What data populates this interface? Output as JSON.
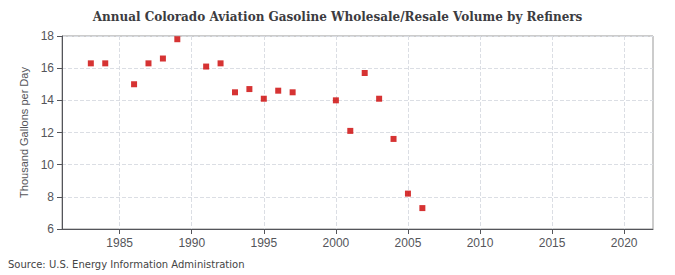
{
  "chart_data": {
    "type": "scatter",
    "title": "Annual Colorado Aviation Gasoline Wholesale/Resale Volume by Refiners",
    "ylabel": "Thousand Gallons per Day",
    "source": "Source: U.S. Energy Information Administration",
    "color": "#cc0000",
    "marker": "square",
    "grid": true,
    "xlim": [
      1981,
      2022
    ],
    "ylim": [
      6,
      18
    ],
    "xticks": [
      1985,
      1990,
      1995,
      2000,
      2005,
      2010,
      2015,
      2020
    ],
    "yticks": [
      6,
      8,
      10,
      12,
      14,
      16,
      18
    ],
    "x": [
      1983,
      1984,
      1986,
      1987,
      1988,
      1989,
      1991,
      1992,
      1993,
      1994,
      1995,
      1996,
      1997,
      2000,
      2001,
      2002,
      2003,
      2004,
      2005,
      2006
    ],
    "values": [
      16.3,
      16.3,
      15.0,
      16.3,
      16.6,
      17.8,
      16.1,
      16.3,
      14.5,
      14.7,
      14.1,
      14.6,
      14.5,
      14.0,
      12.1,
      15.7,
      14.1,
      11.6,
      8.2,
      7.3
    ]
  }
}
